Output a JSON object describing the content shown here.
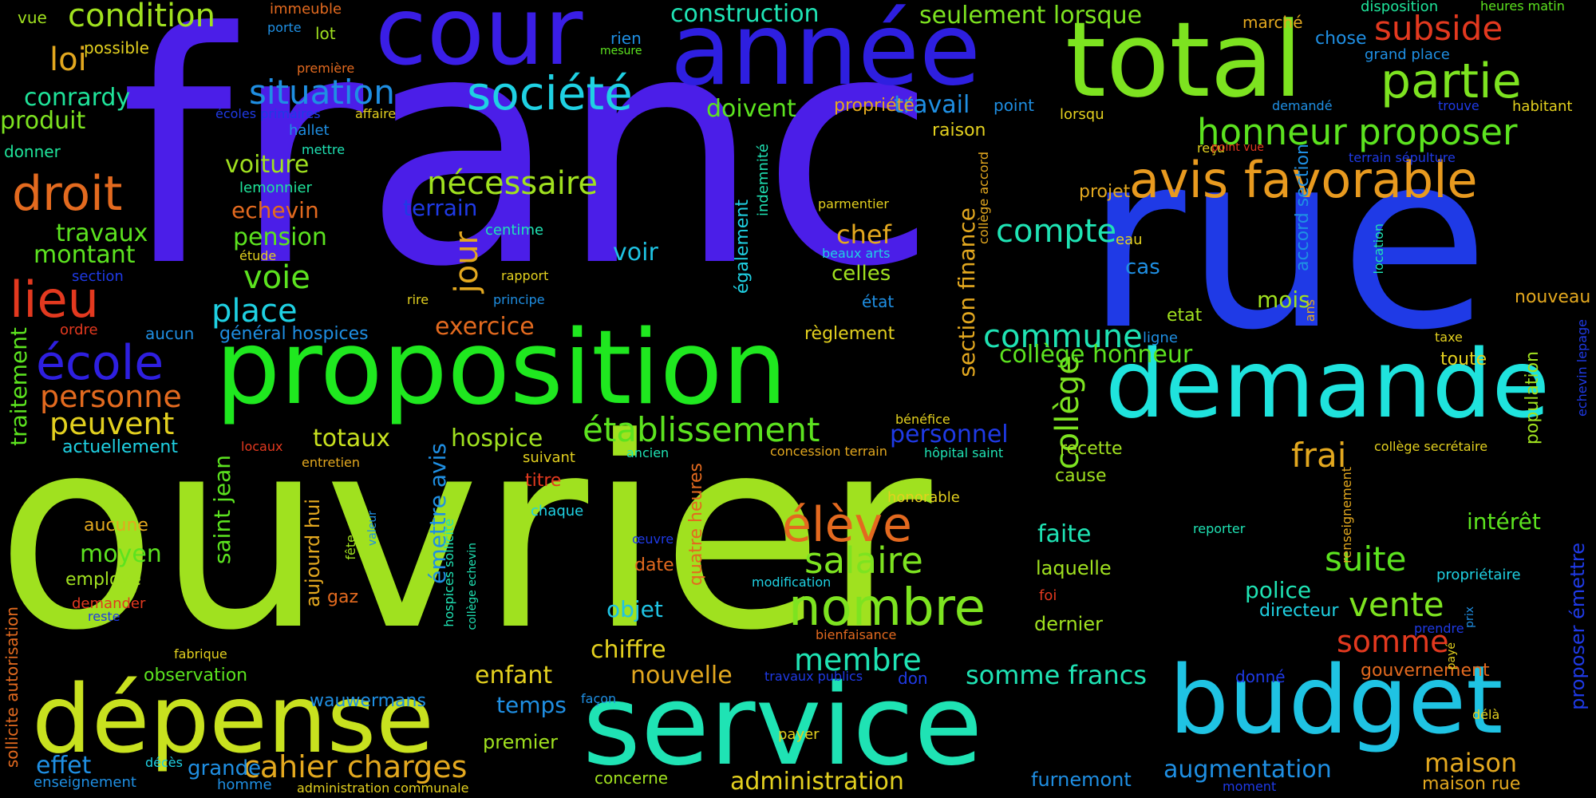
{
  "background_color": "#000000",
  "words": [
    {
      "text": "franc",
      "color": "#4b1ee8"
    },
    {
      "text": "ouvrier",
      "color": "#a0e11f"
    },
    {
      "text": "rue",
      "color": "#1f3ae6"
    },
    {
      "text": "total",
      "color": "#7de320"
    },
    {
      "text": "année",
      "color": "#2e1fe0"
    },
    {
      "text": "cour",
      "color": "#3a1ee6"
    },
    {
      "text": "proposition",
      "color": "#1fe81f"
    },
    {
      "text": "demande",
      "color": "#1fe3dd"
    },
    {
      "text": "service",
      "color": "#1fe3b4"
    },
    {
      "text": "budget",
      "color": "#1fc3e3"
    },
    {
      "text": "dépense",
      "color": "#c8e11f"
    },
    {
      "text": "avis favorable",
      "color": "#e89a1f"
    },
    {
      "text": "partie",
      "color": "#7de320"
    },
    {
      "text": "honneur proposer",
      "color": "#5ce31f"
    },
    {
      "text": "société",
      "color": "#1fd1e3"
    },
    {
      "text": "situation",
      "color": "#1f8fe3"
    },
    {
      "text": "droit",
      "color": "#e36a1f"
    },
    {
      "text": "lieu",
      "color": "#e3391f"
    },
    {
      "text": "école",
      "color": "#2e1fe0"
    },
    {
      "text": "nombre",
      "color": "#7de320"
    },
    {
      "text": "élève",
      "color": "#e3691f"
    },
    {
      "text": "salaire",
      "color": "#7de320"
    },
    {
      "text": "établissement",
      "color": "#5ce31f"
    },
    {
      "text": "commune",
      "color": "#1fe3b4"
    },
    {
      "text": "collège",
      "color": "#7de320"
    },
    {
      "text": "jour",
      "color": "#e3a81f"
    },
    {
      "text": "nécessaire",
      "color": "#a0e11f"
    },
    {
      "text": "compte",
      "color": "#1fe3b4"
    },
    {
      "text": "condition",
      "color": "#a0e11f"
    },
    {
      "text": "loi",
      "color": "#e3a81f"
    },
    {
      "text": "subside",
      "color": "#e3391f"
    },
    {
      "text": "voie",
      "color": "#5ce31f"
    },
    {
      "text": "place",
      "color": "#1fd1e3"
    },
    {
      "text": "personne",
      "color": "#e36a1f"
    },
    {
      "text": "peuvent",
      "color": "#e3d01f"
    },
    {
      "text": "cahier charges",
      "color": "#e3a81f"
    },
    {
      "text": "membre",
      "color": "#1fe3b4"
    },
    {
      "text": "somme francs",
      "color": "#1fe3b4"
    },
    {
      "text": "somme",
      "color": "#e3391f"
    },
    {
      "text": "vente",
      "color": "#7de320"
    },
    {
      "text": "suite",
      "color": "#5ce31f"
    },
    {
      "text": "frai",
      "color": "#e3a81f"
    },
    {
      "text": "maison",
      "color": "#e3a81f"
    },
    {
      "text": "augmentation",
      "color": "#1f8fe3"
    },
    {
      "text": "administration",
      "color": "#e3d01f"
    },
    {
      "text": "chiffre",
      "color": "#e3d01f"
    },
    {
      "text": "enfant",
      "color": "#e3d01f"
    },
    {
      "text": "nouvelle",
      "color": "#e3a81f"
    },
    {
      "text": "temps",
      "color": "#1f8fe3"
    },
    {
      "text": "effet",
      "color": "#1f8fe3"
    },
    {
      "text": "grande",
      "color": "#1f8fe3"
    },
    {
      "text": "moyen",
      "color": "#5ce31f"
    },
    {
      "text": "hospice",
      "color": "#a0e11f"
    },
    {
      "text": "totaux",
      "color": "#c8e11f"
    },
    {
      "text": "personnel",
      "color": "#1f3ae6"
    },
    {
      "text": "exercice",
      "color": "#e36a1f"
    },
    {
      "text": "chef",
      "color": "#e3a81f"
    },
    {
      "text": "celles",
      "color": "#a0e11f"
    },
    {
      "text": "voir",
      "color": "#1fc3e3"
    },
    {
      "text": "travail",
      "color": "#1f8fe3"
    },
    {
      "text": "doivent",
      "color": "#5ce31f"
    },
    {
      "text": "construction",
      "color": "#1fe3b4"
    },
    {
      "text": "seulement lorsque",
      "color": "#7de320"
    },
    {
      "text": "collège honneur",
      "color": "#5ce31f"
    },
    {
      "text": "conrardy",
      "color": "#1fe39a"
    },
    {
      "text": "produit",
      "color": "#7de320"
    },
    {
      "text": "travaux",
      "color": "#5ce31f"
    },
    {
      "text": "montant",
      "color": "#5ce31f"
    },
    {
      "text": "voiture",
      "color": "#a0e11f"
    },
    {
      "text": "echevin",
      "color": "#e36a1f"
    },
    {
      "text": "pension",
      "color": "#5ce31f"
    },
    {
      "text": "terrain",
      "color": "#1f3ae6"
    },
    {
      "text": "traitement",
      "color": "#5ce31f"
    },
    {
      "text": "actuellement",
      "color": "#1fd1e3"
    },
    {
      "text": "saint jean",
      "color": "#5ce31f"
    },
    {
      "text": "émettre avis",
      "color": "#1f8fe3"
    },
    {
      "text": "aujourd hui",
      "color": "#e3a81f"
    },
    {
      "text": "section finance",
      "color": "#e3a81f"
    },
    {
      "text": "intérêt",
      "color": "#5ce31f"
    },
    {
      "text": "police",
      "color": "#1fe3b4"
    },
    {
      "text": "directeur",
      "color": "#1fd1e3"
    },
    {
      "text": "objet",
      "color": "#1fc3e3"
    },
    {
      "text": "faite",
      "color": "#1fe3b4"
    },
    {
      "text": "laquelle",
      "color": "#a0e11f"
    },
    {
      "text": "dernier",
      "color": "#a0e11f"
    },
    {
      "text": "mois",
      "color": "#a0e11f"
    },
    {
      "text": "cas",
      "color": "#1f8fe3"
    },
    {
      "text": "projet",
      "color": "#e3a81f"
    },
    {
      "text": "raison",
      "color": "#e3d01f"
    },
    {
      "text": "propriété",
      "color": "#e3a81f"
    },
    {
      "text": "nouveau",
      "color": "#e3a81f"
    },
    {
      "text": "toute",
      "color": "#e3d01f"
    },
    {
      "text": "gouvernement",
      "color": "#e36a1f"
    },
    {
      "text": "maison rue",
      "color": "#e3a81f"
    },
    {
      "text": "furnemont",
      "color": "#1f8fe3"
    },
    {
      "text": "concerne",
      "color": "#a0e11f"
    },
    {
      "text": "premier",
      "color": "#a0e11f"
    },
    {
      "text": "observation",
      "color": "#5ce31f"
    },
    {
      "text": "wauwermans",
      "color": "#1f8fe3"
    },
    {
      "text": "enseignement",
      "color": "#1f8fe3"
    },
    {
      "text": "homme",
      "color": "#1f8fe3"
    },
    {
      "text": "administration communale",
      "color": "#e3d01f"
    },
    {
      "text": "aucune",
      "color": "#e3a81f"
    },
    {
      "text": "employé",
      "color": "#a0e11f"
    },
    {
      "text": "demander",
      "color": "#e3391f"
    },
    {
      "text": "gaz",
      "color": "#e36a1f"
    },
    {
      "text": "date",
      "color": "#e36a1f"
    },
    {
      "text": "titre",
      "color": "#e3391f"
    },
    {
      "text": "chaque",
      "color": "#1fd1e3"
    },
    {
      "text": "suivant",
      "color": "#e3d01f"
    },
    {
      "text": "recette",
      "color": "#a0e11f"
    },
    {
      "text": "cause",
      "color": "#a0e11f"
    },
    {
      "text": "vue",
      "color": "#a0e11f"
    },
    {
      "text": "possible",
      "color": "#e3d01f"
    },
    {
      "text": "donner",
      "color": "#1fe39a"
    },
    {
      "text": "immeuble",
      "color": "#e36a1f"
    },
    {
      "text": "porte",
      "color": "#1f8fe3"
    },
    {
      "text": "lot",
      "color": "#a0e11f"
    },
    {
      "text": "première",
      "color": "#e36a1f"
    },
    {
      "text": "rien",
      "color": "#1f8fe3"
    },
    {
      "text": "mesure",
      "color": "#5ce31f"
    },
    {
      "text": "marché",
      "color": "#e3a81f"
    },
    {
      "text": "chose",
      "color": "#1f8fe3"
    },
    {
      "text": "grand place",
      "color": "#1f8fe3"
    },
    {
      "text": "disposition",
      "color": "#1fe39a"
    },
    {
      "text": "heures matin",
      "color": "#5ce31f"
    },
    {
      "text": "point",
      "color": "#1f8fe3"
    },
    {
      "text": "demandé",
      "color": "#1f8fe3"
    },
    {
      "text": "trouve",
      "color": "#1f3ae6"
    },
    {
      "text": "habitant",
      "color": "#e3d01f"
    },
    {
      "text": "lorsqu",
      "color": "#e3d01f"
    },
    {
      "text": "reçu",
      "color": "#e3d01f"
    },
    {
      "text": "point vue",
      "color": "#e3391f"
    },
    {
      "text": "terrain sépulture",
      "color": "#1f3ae6"
    },
    {
      "text": "hallet",
      "color": "#1f8fe3"
    },
    {
      "text": "mettre",
      "color": "#1fe3b4"
    },
    {
      "text": "lemonnier",
      "color": "#1fe39a"
    },
    {
      "text": "écoles primaires",
      "color": "#1f3ae6"
    },
    {
      "text": "affaire",
      "color": "#e3d01f"
    },
    {
      "text": "étude",
      "color": "#e3d01f"
    },
    {
      "text": "section",
      "color": "#1f3ae6"
    },
    {
      "text": "ordre",
      "color": "#e3391f"
    },
    {
      "text": "aucun",
      "color": "#1f8fe3"
    },
    {
      "text": "général hospices",
      "color": "#1f8fe3"
    },
    {
      "text": "rapport",
      "color": "#e3d01f"
    },
    {
      "text": "rire",
      "color": "#e3d01f"
    },
    {
      "text": "principe",
      "color": "#1f8fe3"
    },
    {
      "text": "centime",
      "color": "#1fe3b4"
    },
    {
      "text": "parmentier",
      "color": "#e3d01f"
    },
    {
      "text": "beaux arts",
      "color": "#1fd1e3"
    },
    {
      "text": "état",
      "color": "#1f8fe3"
    },
    {
      "text": "règlement",
      "color": "#e3d01f"
    },
    {
      "text": "eau",
      "color": "#e3d01f"
    },
    {
      "text": "etat",
      "color": "#a0e11f"
    },
    {
      "text": "ligne",
      "color": "#1f8fe3"
    },
    {
      "text": "taxe",
      "color": "#e3d01f"
    },
    {
      "text": "ans",
      "color": "#e3a81f"
    },
    {
      "text": "bénéfice",
      "color": "#e3d01f"
    },
    {
      "text": "locaux",
      "color": "#e3391f"
    },
    {
      "text": "entretien",
      "color": "#e3a81f"
    },
    {
      "text": "ancien",
      "color": "#1fe3b4"
    },
    {
      "text": "concession terrain",
      "color": "#e3a81f"
    },
    {
      "text": "hôpital saint",
      "color": "#1fe3b4"
    },
    {
      "text": "collège secrétaire",
      "color": "#e3d01f"
    },
    {
      "text": "honorable",
      "color": "#e3d01f"
    },
    {
      "text": "fête",
      "color": "#a0e11f"
    },
    {
      "text": "valeur",
      "color": "#1f8fe3"
    },
    {
      "text": "œuvre",
      "color": "#1f3ae6"
    },
    {
      "text": "reporter",
      "color": "#1fe3b4"
    },
    {
      "text": "modification",
      "color": "#1fd1e3"
    },
    {
      "text": "propriétaire",
      "color": "#1fd1e3"
    },
    {
      "text": "foi",
      "color": "#e3391f"
    },
    {
      "text": "bienfaisance",
      "color": "#e36a1f"
    },
    {
      "text": "fabrique",
      "color": "#e3d01f"
    },
    {
      "text": "reste",
      "color": "#1f3ae6"
    },
    {
      "text": "façon",
      "color": "#1f8fe3"
    },
    {
      "text": "travaux publics",
      "color": "#1f3ae6"
    },
    {
      "text": "don",
      "color": "#1f3ae6"
    },
    {
      "text": "donné",
      "color": "#1f3ae6"
    },
    {
      "text": "payer",
      "color": "#e3d01f"
    },
    {
      "text": "décès",
      "color": "#1fd1e3"
    },
    {
      "text": "moment",
      "color": "#1f3ae6"
    },
    {
      "text": "délà",
      "color": "#e3d01f"
    },
    {
      "text": "prendre",
      "color": "#1f3ae6"
    },
    {
      "text": "payé",
      "color": "#e3d01f"
    },
    {
      "text": "prix",
      "color": "#1f8fe3"
    },
    {
      "text": "proposer émettre",
      "color": "#1f3ae6"
    },
    {
      "text": "population",
      "color": "#a0e11f"
    },
    {
      "text": "echevin lepage",
      "color": "#1f3ae6"
    },
    {
      "text": "indemnité",
      "color": "#1fe3b4"
    },
    {
      "text": "également",
      "color": "#1fd1e3"
    },
    {
      "text": "collège accord",
      "color": "#e3a81f"
    },
    {
      "text": "accord section",
      "color": "#1f8fe3"
    },
    {
      "text": "location",
      "color": "#1fe3b4"
    },
    {
      "text": "quatre heures",
      "color": "#e36a1f"
    },
    {
      "text": "hospices sollicite",
      "color": "#1fe3b4"
    },
    {
      "text": "collège echevin",
      "color": "#1fe3b4"
    },
    {
      "text": "sollicite autorisation",
      "color": "#e36a1f"
    },
    {
      "text": "renseignement",
      "color": "#e3a81f"
    }
  ]
}
